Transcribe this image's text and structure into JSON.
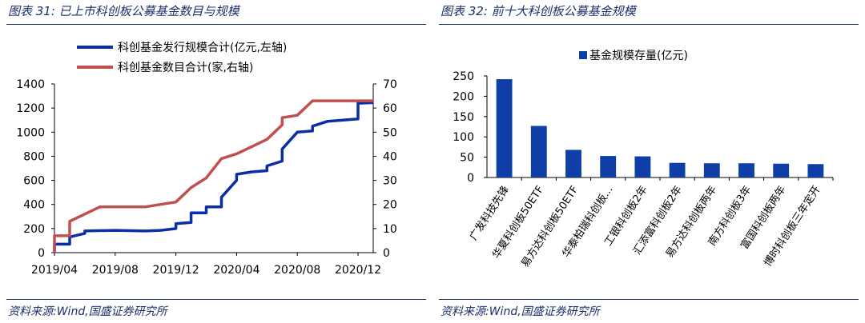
{
  "left": {
    "title": "图表 31:  已上市科创板公募基金数目与规模",
    "source": "资料来源:Wind,国盛证券研究所",
    "chart_data": {
      "type": "line",
      "title": "",
      "x_ticks": [
        "2019/04",
        "2019/08",
        "2019/12",
        "2020/04",
        "2020/08",
        "2020/12"
      ],
      "xlim": [
        "2019/04",
        "2021/01"
      ],
      "y_left": {
        "lim": [
          0,
          1400
        ],
        "ticks": [
          0,
          200,
          400,
          600,
          800,
          1000,
          1200,
          1400
        ]
      },
      "y_right": {
        "lim": [
          0,
          70
        ],
        "ticks": [
          0,
          10,
          20,
          30,
          40,
          50,
          60,
          70
        ]
      },
      "series": [
        {
          "name": "科创基金发行规模合计(亿元,左轴)",
          "axis": "left",
          "color": "#0a2ea6",
          "points": [
            [
              "2019/04",
              0
            ],
            [
              "2019/04",
              70
            ],
            [
              "2019/05",
              70
            ],
            [
              "2019/05",
              130
            ],
            [
              "2019/06",
              160
            ],
            [
              "2019/06",
              180
            ],
            [
              "2019/08",
              185
            ],
            [
              "2019/10",
              180
            ],
            [
              "2019/11",
              185
            ],
            [
              "2019/12",
              200
            ],
            [
              "2019/12",
              240
            ],
            [
              "2020/01",
              250
            ],
            [
              "2020/01",
              330
            ],
            [
              "2020/02",
              330
            ],
            [
              "2020/02",
              380
            ],
            [
              "2020/03",
              380
            ],
            [
              "2020/03",
              430
            ],
            [
              "2020/03",
              460
            ],
            [
              "2020/04",
              600
            ],
            [
              "2020/04",
              650
            ],
            [
              "2020/05",
              670
            ],
            [
              "2020/06",
              680
            ],
            [
              "2020/06",
              720
            ],
            [
              "2020/07",
              760
            ],
            [
              "2020/07",
              860
            ],
            [
              "2020/08",
              1000
            ],
            [
              "2020/09",
              1010
            ],
            [
              "2020/09",
              1050
            ],
            [
              "2020/10",
              1090
            ],
            [
              "2020/11",
              1100
            ],
            [
              "2020/12",
              1110
            ],
            [
              "2020/12",
              1240
            ],
            [
              "2021/01",
              1245
            ]
          ]
        },
        {
          "name": "科创基金数目合计(家,右轴)",
          "axis": "right",
          "color": "#c0504d",
          "points": [
            [
              "2019/04",
              0
            ],
            [
              "2019/04",
              7
            ],
            [
              "2019/05",
              7
            ],
            [
              "2019/05",
              13
            ],
            [
              "2019/06",
              16
            ],
            [
              "2019/07",
              19
            ],
            [
              "2019/08",
              19
            ],
            [
              "2019/10",
              19
            ],
            [
              "2019/11",
              20
            ],
            [
              "2019/12",
              21
            ],
            [
              "2020/01",
              27
            ],
            [
              "2020/02",
              31
            ],
            [
              "2020/03",
              39
            ],
            [
              "2020/04",
              41
            ],
            [
              "2020/05",
              44
            ],
            [
              "2020/06",
              47
            ],
            [
              "2020/07",
              53
            ],
            [
              "2020/07",
              56
            ],
            [
              "2020/08",
              57
            ],
            [
              "2020/09",
              63
            ],
            [
              "2021/01",
              63
            ]
          ]
        }
      ]
    }
  },
  "right": {
    "title": "图表 32:  前十大科创板公募基金规模",
    "source": "资料来源:Wind,国盛证券研究所",
    "chart_data": {
      "type": "bar",
      "title": "",
      "categories": [
        "广发科技先锋",
        "华夏科创板50ETF",
        "易方达科创板50ETF",
        "华泰柏瑞科创板...",
        "工银科创板2年",
        "汇添富科创板2年",
        "易方达科创板两年",
        "南方科创板3年",
        "富国科创板两年",
        "博时科创板三年定开"
      ],
      "series": [
        {
          "name": "基金规模存量(亿元)",
          "color": "#0f3fa6",
          "values": [
            242,
            127,
            68,
            53,
            52,
            36,
            35,
            35,
            34,
            33
          ]
        }
      ],
      "ylim": [
        0,
        250
      ],
      "yticks": [
        0,
        50,
        100,
        150,
        200,
        250
      ],
      "legend": "top"
    }
  }
}
